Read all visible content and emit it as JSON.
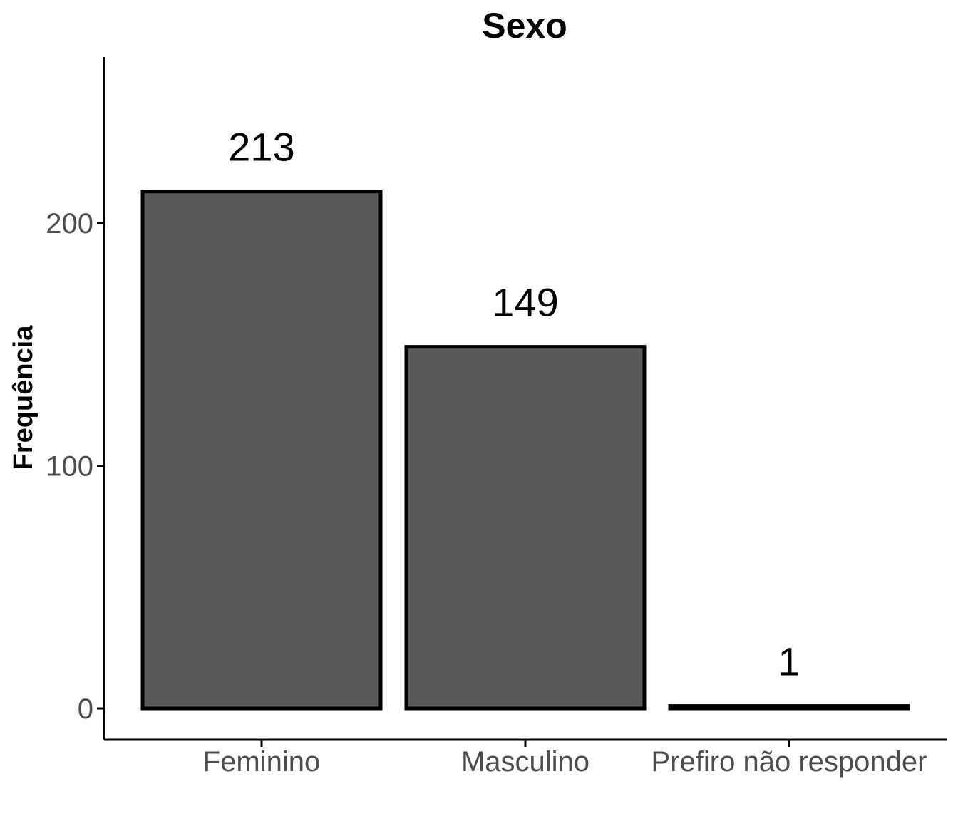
{
  "chart_data": {
    "type": "bar",
    "title": "Sexo",
    "xlabel": "",
    "ylabel": "Frequência",
    "categories": [
      "Feminino",
      "Masculino",
      "Prefiro não responder"
    ],
    "values": [
      213,
      149,
      1
    ],
    "data_labels": [
      "213",
      "149",
      "1"
    ],
    "y_ticks": [
      0,
      100,
      200
    ],
    "y_tick_labels": [
      "0",
      "100",
      "200"
    ],
    "ylim": [
      -13,
      268
    ],
    "grid": false,
    "legend": "none",
    "colors": {
      "bar_fill": "#595959",
      "bar_stroke": "#000000",
      "axis": "#000000",
      "tick_label": "#4d4d4d"
    }
  }
}
